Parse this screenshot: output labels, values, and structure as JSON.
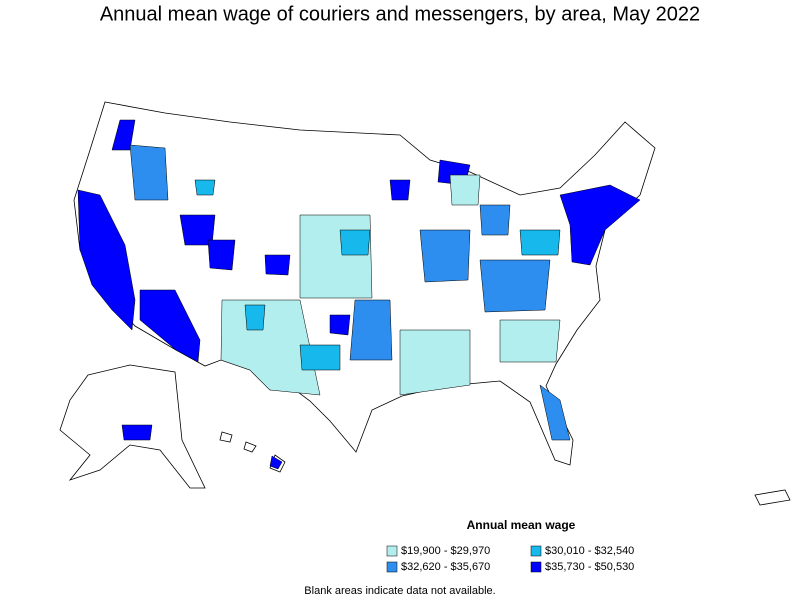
{
  "title": "Annual mean wage of couriers and messengers, by area, May 2022",
  "legend": {
    "title": "Annual mean wage",
    "items": [
      {
        "label": "$19,900 - $29,970",
        "color": "#b3eeee"
      },
      {
        "label": "$30,010 - $32,540",
        "color": "#17b9ec"
      },
      {
        "label": "$32,620 - $35,670",
        "color": "#2d8ef0"
      },
      {
        "label": "$35,730 - $50,530",
        "color": "#0000ff"
      }
    ]
  },
  "note": "Blank areas indicate data not available."
}
